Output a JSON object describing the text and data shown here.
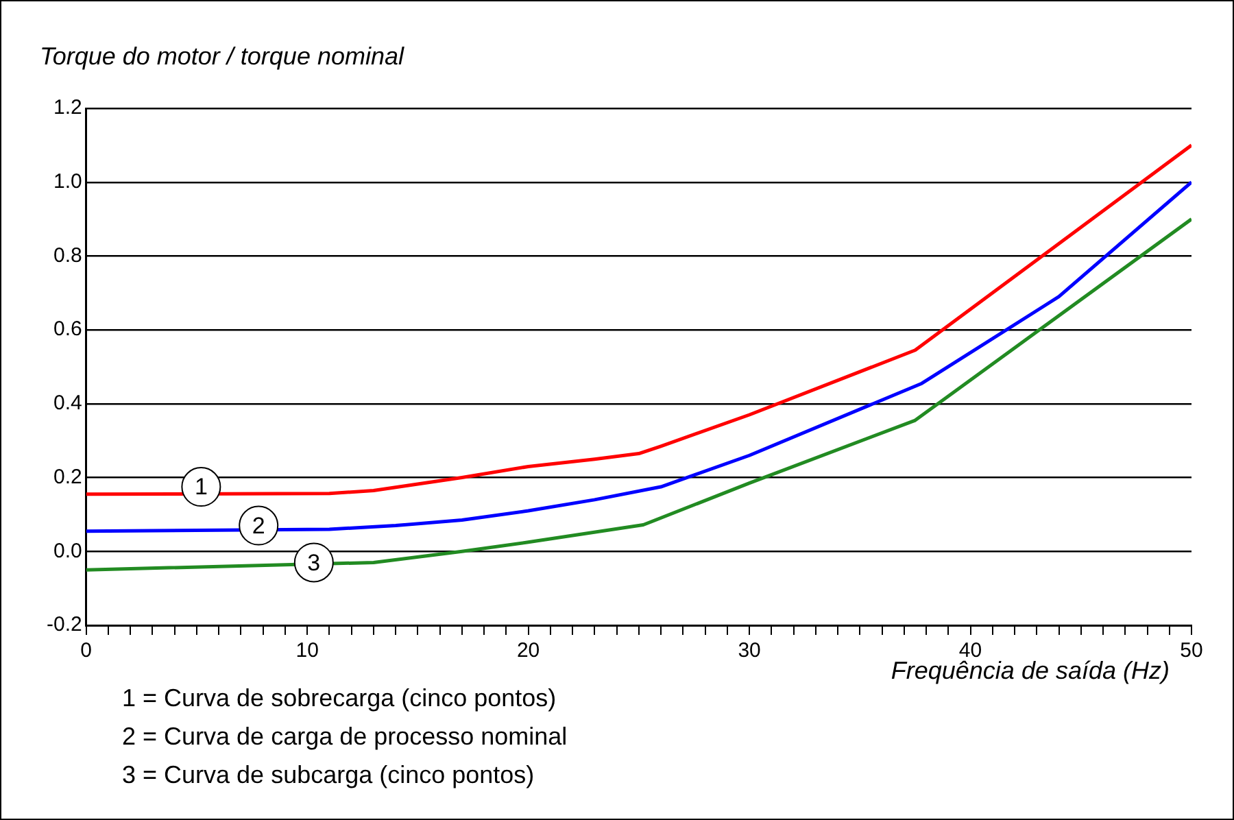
{
  "chart_data": {
    "type": "line",
    "ylabel": "Torque do motor / torque nominal",
    "xlabel": "Frequência de saída (Hz)",
    "xlim": [
      0,
      50
    ],
    "ylim": [
      -0.2,
      1.2
    ],
    "xticks": [
      0,
      {
        "value": 1,
        "label": null
      },
      {
        "value": 2,
        "label": null
      },
      {
        "value": 3,
        "label": null
      },
      {
        "value": 4,
        "label": null
      },
      {
        "value": 5,
        "label": null
      },
      {
        "value": 6,
        "label": null
      },
      {
        "value": 7,
        "label": null
      },
      {
        "value": 8,
        "label": null
      },
      {
        "value": 9,
        "label": null
      },
      10,
      {
        "value": 11,
        "label": null
      },
      {
        "value": 12,
        "label": null
      },
      {
        "value": 13,
        "label": null
      },
      {
        "value": 14,
        "label": null
      },
      {
        "value": 15,
        "label": null
      },
      {
        "value": 16,
        "label": null
      },
      {
        "value": 17,
        "label": null
      },
      {
        "value": 18,
        "label": null
      },
      {
        "value": 19,
        "label": null
      },
      20,
      {
        "value": 21,
        "label": null
      },
      {
        "value": 22,
        "label": null
      },
      {
        "value": 23,
        "label": null
      },
      {
        "value": 24,
        "label": null
      },
      {
        "value": 25,
        "label": null
      },
      {
        "value": 26,
        "label": null
      },
      {
        "value": 27,
        "label": null
      },
      {
        "value": 28,
        "label": null
      },
      {
        "value": 29,
        "label": null
      },
      30,
      {
        "value": 31,
        "label": null
      },
      {
        "value": 32,
        "label": null
      },
      {
        "value": 33,
        "label": null
      },
      {
        "value": 34,
        "label": null
      },
      {
        "value": 35,
        "label": null
      },
      {
        "value": 36,
        "label": null
      },
      {
        "value": 37,
        "label": null
      },
      {
        "value": 38,
        "label": null
      },
      {
        "value": 39,
        "label": null
      },
      40,
      {
        "value": 41,
        "label": null
      },
      {
        "value": 42,
        "label": null
      },
      {
        "value": 43,
        "label": null
      },
      {
        "value": 44,
        "label": null
      },
      {
        "value": 45,
        "label": null
      },
      {
        "value": 46,
        "label": null
      },
      {
        "value": 47,
        "label": null
      },
      {
        "value": 48,
        "label": null
      },
      {
        "value": 49,
        "label": null
      },
      50
    ],
    "yticks": [
      -0.2,
      {
        "value": 0,
        "label": "0.0"
      },
      0.2,
      0.4,
      0.6,
      0.8,
      {
        "value": 1,
        "label": "1.0"
      },
      1.2
    ],
    "grid": "y",
    "legend": false,
    "marker": "none",
    "line_style": "solid",
    "series": [
      {
        "color": "#ff0000",
        "x": [
          0,
          11,
          13,
          17,
          20,
          23,
          25,
          26,
          30,
          37.5,
          50
        ],
        "values": [
          0.155,
          0.157,
          0.165,
          0.2,
          0.23,
          0.25,
          0.265,
          0.285,
          0.37,
          0.545,
          1.1
        ]
      },
      {
        "color": "#0000ff",
        "x": [
          0,
          11,
          14,
          17,
          20,
          23,
          26,
          30,
          37.8,
          44,
          50
        ],
        "values": [
          0.055,
          0.06,
          0.07,
          0.085,
          0.11,
          0.14,
          0.175,
          0.26,
          0.455,
          0.69,
          1.0
        ]
      },
      {
        "color": "#228b22",
        "x": [
          0,
          13,
          17,
          20,
          25.2,
          30,
          37.5,
          50
        ],
        "values": [
          -0.05,
          -0.03,
          0.0,
          0.025,
          0.072,
          0.185,
          0.355,
          0.9
        ]
      }
    ],
    "annotations": [
      {
        "text": "1",
        "x": 5.2,
        "y": 0.175
      },
      {
        "text": "2",
        "x": 7.8,
        "y": 0.07
      },
      {
        "text": "3",
        "x": 10.3,
        "y": -0.03
      },
      "1 = Curva de sobrecarga (cinco pontos)",
      "2 = Curva de carga de processo nominal",
      "3 = Curva de subcarga (cinco pontos)"
    ]
  }
}
